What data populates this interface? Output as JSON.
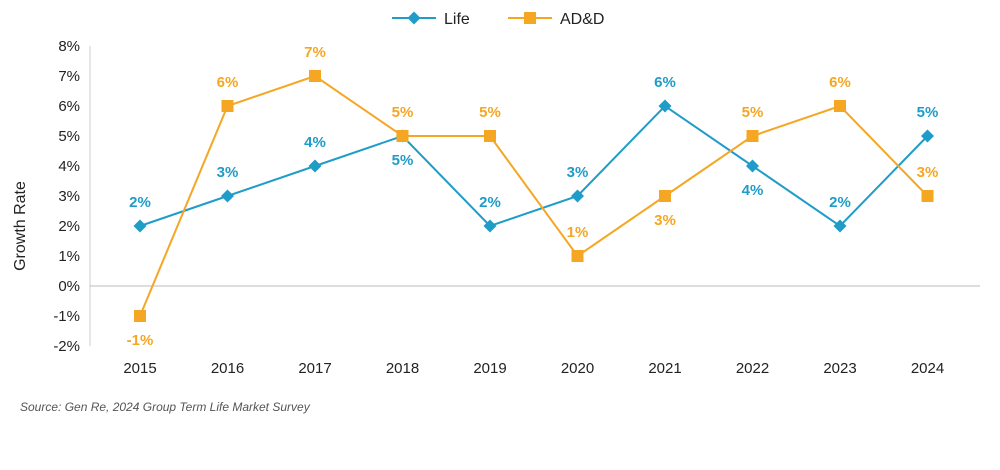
{
  "chart_data": {
    "type": "line",
    "title": "",
    "xlabel": "",
    "ylabel": "Growth Rate",
    "ylim": [
      -2,
      8
    ],
    "yticks": [
      "-2%",
      "-1%",
      "0%",
      "1%",
      "2%",
      "3%",
      "4%",
      "5%",
      "6%",
      "7%",
      "8%"
    ],
    "categories": [
      "2015",
      "2016",
      "2017",
      "2018",
      "2019",
      "2020",
      "2021",
      "2022",
      "2023",
      "2024"
    ],
    "legend_position": "top-center",
    "series": [
      {
        "name": "Life",
        "marker": "diamond",
        "color": "#1f9cc7",
        "values": [
          2,
          3,
          4,
          5,
          2,
          3,
          6,
          4,
          2,
          5
        ],
        "labels": [
          "2%",
          "3%",
          "4%",
          "5%",
          "2%",
          "3%",
          "6%",
          "4%",
          "2%",
          "5%"
        ],
        "label_pos": [
          "above",
          "above",
          "above",
          "below",
          "above",
          "above",
          "above",
          "below",
          "above",
          "above"
        ]
      },
      {
        "name": "AD&D",
        "marker": "square",
        "color": "#f5a623",
        "values": [
          -1,
          6,
          7,
          5,
          5,
          1,
          3,
          5,
          6,
          3
        ],
        "labels": [
          "-1%",
          "6%",
          "7%",
          "5%",
          "5%",
          "1%",
          "3%",
          "5%",
          "6%",
          "3%"
        ],
        "label_pos": [
          "below",
          "above",
          "above",
          "above",
          "above",
          "above",
          "below",
          "above",
          "above",
          "above"
        ]
      }
    ]
  },
  "source": "Source: Gen Re, 2024 Group Term Life Market Survey"
}
